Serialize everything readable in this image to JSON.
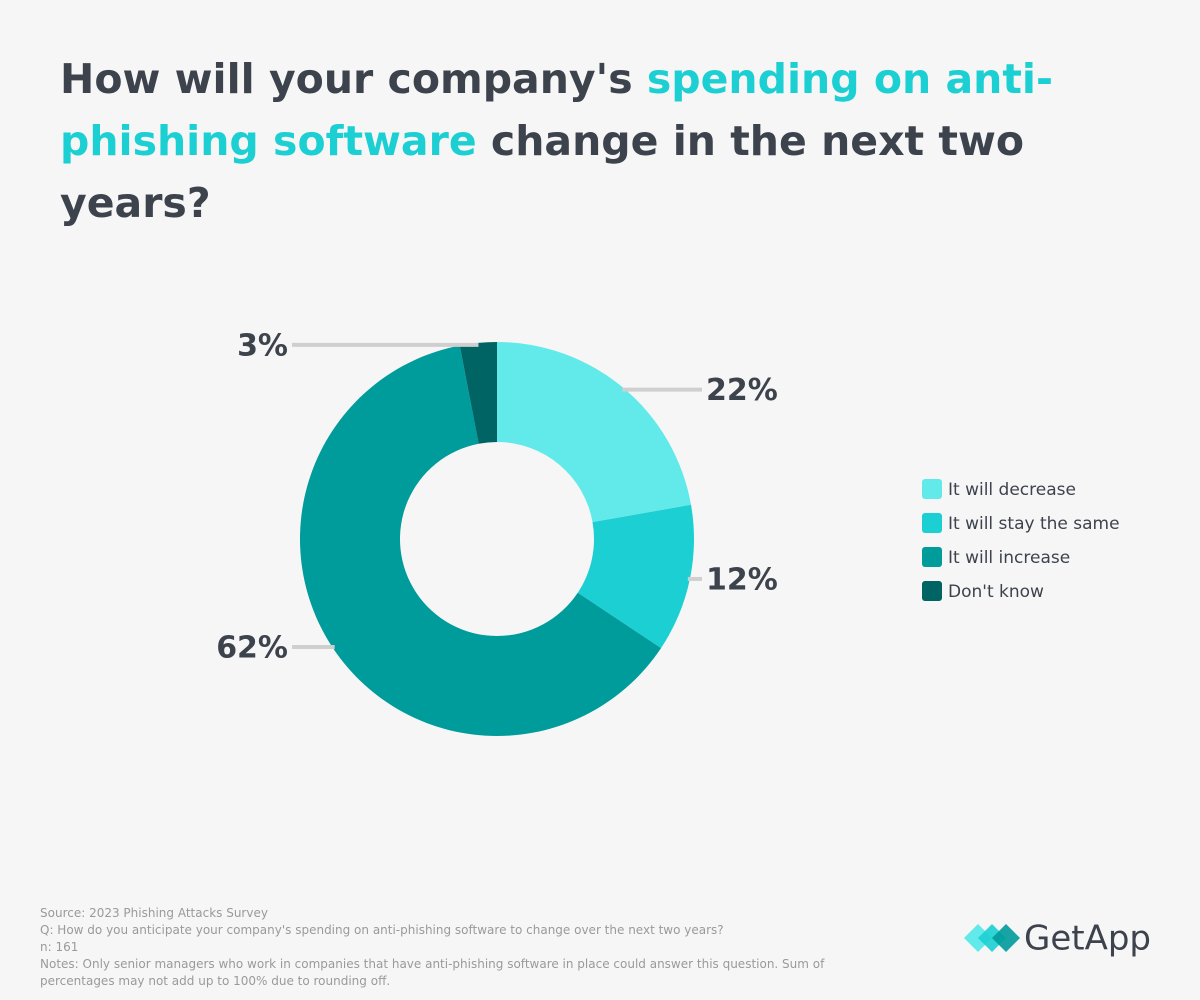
{
  "chart_data": {
    "type": "donut",
    "title_parts": [
      {
        "text": "How will your company's ",
        "color": "#3d434d"
      },
      {
        "text": "spending on anti-phishing software",
        "color": "#1ccfd3"
      },
      {
        "text": " change in the next two years?",
        "color": "#3d434d"
      }
    ],
    "categories": [
      "It will decrease",
      "It will stay the same",
      "It will increase",
      "Don't know"
    ],
    "values": [
      22,
      12,
      62,
      3
    ],
    "value_labels": [
      "22%",
      "12%",
      "62%",
      "3%"
    ],
    "colors": [
      "#62e9ea",
      "#1ccfd3",
      "#009b9b",
      "#006464"
    ],
    "legend": "right"
  },
  "footer": {
    "source": "Source: 2023 Phishing Attacks Survey",
    "question": "Q: How do you anticipate your company's spending on anti-phishing software to change over the next two years?",
    "n": "n: 161",
    "notes": "Notes: Only senior managers who work in companies that have anti-phishing software in place could answer this question. Sum of percentages may not add up to 100% due to rounding off."
  },
  "logo": "GetApp"
}
